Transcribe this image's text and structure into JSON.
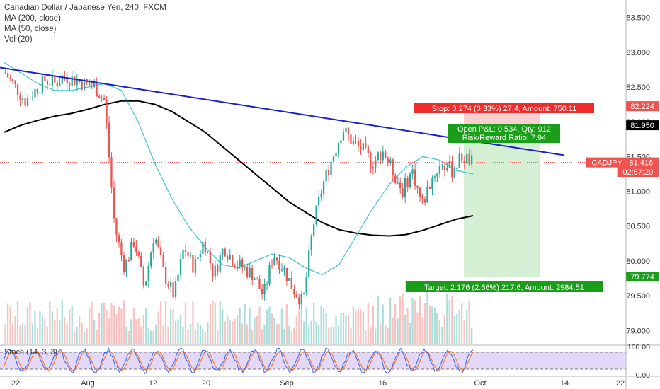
{
  "legend": {
    "title": "Canadian Dollar / Japanese Yen, 240, FXCM",
    "ma200": "MA (200, close)",
    "ma50": "MA (50, close)",
    "vol": "Vol (20)"
  },
  "stoch_label": "Stoch (14, 3, 3)",
  "colors": {
    "up": "#26a69a",
    "down": "#ef5350",
    "trendline": "#1722c9",
    "ma200": "#000000",
    "ma50": "#3fc1d4",
    "stop_zone": "#f7c5c5",
    "target_zone": "#cdeccd",
    "stoch_band": "#d9c8f7"
  },
  "chart_data": {
    "type": "candlestick",
    "symbol": "CADJPY",
    "ylim": [
      78.8,
      83.75
    ],
    "y_ticks": [
      "83.500",
      "83.000",
      "82.500",
      "82.000",
      "81.500",
      "81.000",
      "80.500",
      "80.000",
      "79.500",
      "79.000"
    ],
    "x_ticks": [
      "22",
      "Aug",
      "12",
      "20",
      "Sep",
      "16",
      "Oct",
      "14",
      "22"
    ],
    "price_tags": [
      {
        "text": "82.224",
        "value": 82.224,
        "color": "#ef5350"
      },
      {
        "text": "81.950",
        "value": 81.95,
        "color": "#000000"
      },
      {
        "text": "CADJPY · 81.416",
        "value": 81.416,
        "color": "#ef5350"
      },
      {
        "text": "02:57:20",
        "value": 81.28,
        "color": "#ef5350"
      },
      {
        "text": "79.774",
        "value": 79.774,
        "color": "#1b9e1b"
      }
    ],
    "position": {
      "entry": 81.95,
      "stop": 82.224,
      "target": 79.774,
      "stop_label": "Stop: 0.274 (0.33%) 27.4, Amount: 750.11",
      "target_label": "Target: 2.176 (2.66%) 217.6, Amount: 2984.51",
      "pnl_label": "Open P&L: 0.534, Qty: 912",
      "rr_label": "Risk/Reward Ratio: 7.94"
    },
    "trendline": {
      "start": 82.78,
      "end": 81.52
    },
    "ma200": [
      81.85,
      81.95,
      82.02,
      82.08,
      82.12,
      82.18,
      82.25,
      82.3,
      82.3,
      82.25,
      82.15,
      82.0,
      81.85,
      81.65,
      81.45,
      81.25,
      81.05,
      80.85,
      80.7,
      80.55,
      80.45,
      80.4,
      80.37,
      80.36,
      80.38,
      80.44,
      80.52,
      80.6,
      80.65
    ],
    "ma50": [
      82.85,
      82.7,
      82.55,
      82.45,
      82.45,
      82.5,
      82.55,
      82.45,
      82.0,
      81.4,
      80.9,
      80.5,
      80.2,
      79.95,
      79.9,
      80.0,
      80.1,
      80.05,
      79.9,
      79.8,
      79.95,
      80.35,
      80.75,
      81.1,
      81.35,
      81.5,
      81.45,
      81.3,
      81.25
    ],
    "price_path": [
      82.7,
      82.5,
      82.3,
      82.45,
      82.6,
      82.55,
      82.65,
      82.6,
      82.55,
      82.5,
      82.3,
      80.5,
      79.9,
      80.3,
      79.6,
      80.4,
      79.8,
      79.5,
      80.2,
      79.9,
      80.3,
      79.8,
      80.2,
      80.0,
      79.9,
      79.8,
      79.5,
      80.1,
      79.9,
      79.6,
      79.4,
      80.5,
      81.1,
      81.5,
      81.9,
      81.7,
      81.6,
      81.4,
      81.6,
      81.3,
      81.0,
      81.3,
      80.8,
      81.2,
      81.4,
      81.3,
      81.5,
      81.42
    ],
    "stoch_ylim": [
      0,
      100
    ],
    "stoch_ticks": [
      "100.00",
      "0.00"
    ],
    "stoch_levels": [
      80,
      20
    ]
  }
}
